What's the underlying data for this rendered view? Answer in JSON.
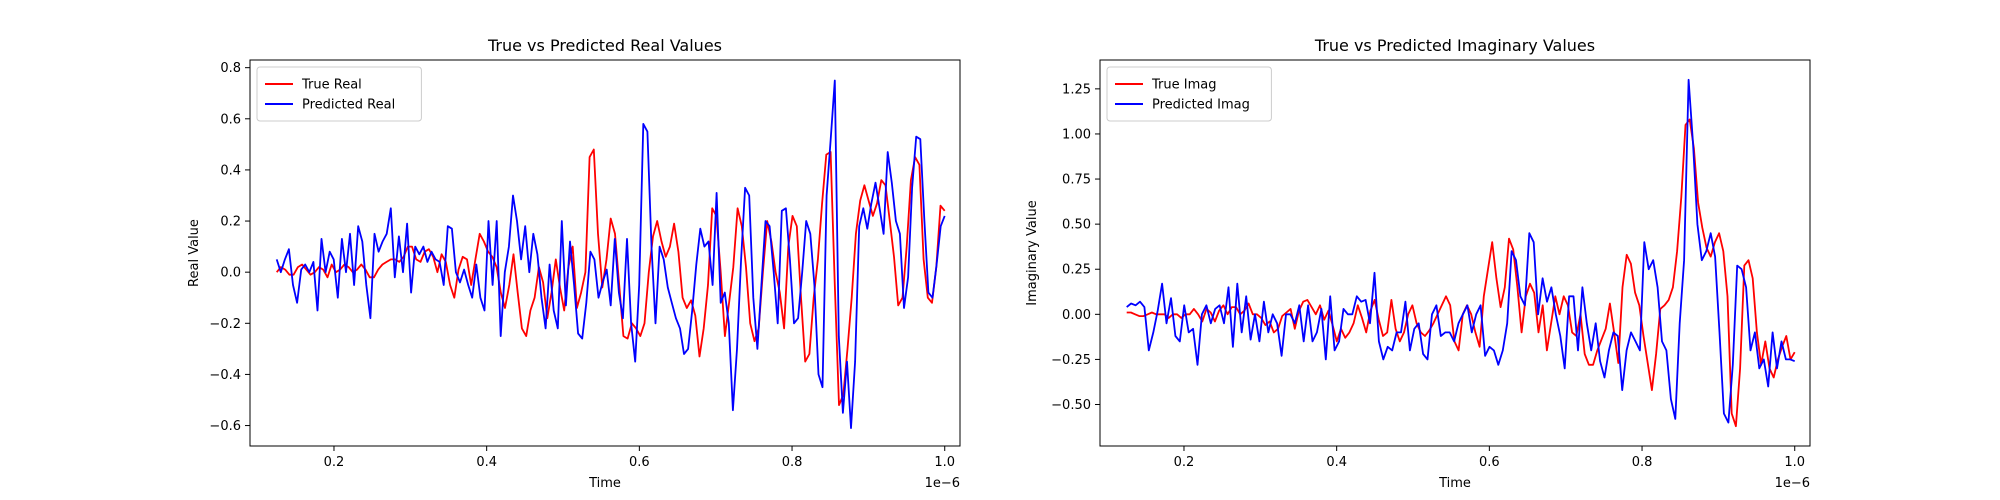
{
  "chart_data": [
    {
      "type": "line",
      "title": "True vs Predicted Real Values",
      "xlabel": "Time",
      "ylabel": "Real Value",
      "x_offset_label": "1e−6",
      "xlim": [
        0.09,
        1.02
      ],
      "ylim": [
        -0.68,
        0.83
      ],
      "x_ticks": [
        0.2,
        0.4,
        0.6,
        0.8,
        1.0
      ],
      "x_tick_labels": [
        "0.2",
        "0.4",
        "0.6",
        "0.8",
        "1.0"
      ],
      "y_ticks": [
        -0.6,
        -0.4,
        -0.2,
        0.0,
        0.2,
        0.4,
        0.6,
        0.8
      ],
      "y_tick_labels": [
        "−0.6",
        "−0.4",
        "−0.2",
        "0.0",
        "0.2",
        "0.4",
        "0.6",
        "0.8"
      ],
      "grid": false,
      "legend_position": "upper left",
      "x_start": 0.125,
      "x_end": 1.0,
      "series": [
        {
          "name": "True Real",
          "color": "#ff0000",
          "values": [
            0.0,
            0.02,
            0.01,
            -0.01,
            -0.01,
            0.02,
            0.03,
            0.01,
            -0.01,
            0.0,
            0.02,
            0.01,
            -0.02,
            0.03,
            0.0,
            0.01,
            0.03,
            0.02,
            0.0,
            0.01,
            0.03,
            0.01,
            -0.02,
            -0.02,
            0.01,
            0.03,
            0.04,
            0.05,
            0.05,
            0.04,
            0.06,
            0.1,
            0.1,
            0.05,
            0.04,
            0.08,
            0.09,
            0.06,
            0.0,
            0.07,
            0.04,
            -0.05,
            -0.1,
            0.01,
            0.06,
            0.05,
            -0.05,
            0.05,
            0.15,
            0.12,
            0.08,
            0.06,
            0.02,
            -0.08,
            -0.14,
            -0.05,
            0.07,
            -0.08,
            -0.22,
            -0.25,
            -0.15,
            -0.1,
            0.02,
            -0.04,
            -0.18,
            -0.08,
            0.05,
            -0.06,
            -0.15,
            0.02,
            0.1,
            -0.14,
            -0.08,
            0.0,
            0.45,
            0.48,
            0.15,
            -0.06,
            0.05,
            0.21,
            0.15,
            -0.05,
            -0.25,
            -0.26,
            -0.2,
            -0.22,
            -0.25,
            -0.2,
            0.0,
            0.14,
            0.2,
            0.12,
            0.06,
            0.1,
            0.19,
            0.08,
            -0.1,
            -0.14,
            -0.11,
            -0.17,
            -0.33,
            -0.22,
            -0.05,
            0.25,
            0.22,
            0.0,
            -0.25,
            -0.12,
            0.02,
            0.25,
            0.18,
            0.02,
            -0.2,
            -0.27,
            -0.22,
            0.0,
            0.2,
            0.12,
            0.0,
            -0.08,
            -0.22,
            0.1,
            0.22,
            0.18,
            -0.1,
            -0.35,
            -0.32,
            -0.1,
            0.05,
            0.27,
            0.46,
            0.47,
            -0.05,
            -0.52,
            -0.48,
            -0.3,
            -0.1,
            0.15,
            0.28,
            0.34,
            0.28,
            0.22,
            0.27,
            0.36,
            0.34,
            0.2,
            0.06,
            -0.13,
            -0.1,
            0.1,
            0.36,
            0.45,
            0.42,
            0.05,
            -0.1,
            -0.12,
            0.02,
            0.26,
            0.24
          ]
        },
        {
          "name": "Predicted Real",
          "color": "#0000ff",
          "values": [
            0.05,
            0.0,
            0.05,
            0.09,
            -0.05,
            -0.12,
            0.01,
            0.03,
            0.0,
            0.04,
            -0.15,
            0.13,
            0.0,
            0.08,
            0.05,
            -0.1,
            0.13,
            0.0,
            0.15,
            -0.05,
            0.18,
            0.12,
            -0.05,
            -0.18,
            0.15,
            0.08,
            0.12,
            0.15,
            0.25,
            -0.02,
            0.14,
            0.0,
            0.19,
            -0.08,
            0.1,
            0.07,
            0.1,
            0.04,
            0.08,
            0.05,
            0.04,
            -0.05,
            0.18,
            0.17,
            0.0,
            -0.04,
            0.01,
            -0.05,
            -0.1,
            0.03,
            -0.1,
            -0.15,
            0.2,
            -0.05,
            0.2,
            -0.25,
            0.0,
            0.1,
            0.3,
            0.2,
            0.05,
            0.18,
            0.0,
            0.15,
            0.07,
            -0.1,
            -0.22,
            0.03,
            -0.15,
            -0.22,
            0.2,
            -0.13,
            0.12,
            -0.05,
            -0.24,
            -0.26,
            -0.12,
            0.08,
            0.05,
            -0.1,
            -0.04,
            0.01,
            -0.13,
            0.13,
            -0.08,
            -0.18,
            0.13,
            -0.2,
            -0.35,
            -0.05,
            0.58,
            0.55,
            0.1,
            -0.2,
            0.1,
            0.05,
            -0.06,
            -0.12,
            -0.18,
            -0.22,
            -0.32,
            -0.3,
            -0.15,
            0.03,
            0.17,
            0.1,
            0.12,
            -0.05,
            0.31,
            -0.12,
            -0.08,
            -0.2,
            -0.54,
            -0.3,
            0.05,
            0.33,
            0.3,
            -0.1,
            -0.3,
            -0.05,
            0.2,
            0.18,
            0.0,
            -0.2,
            0.24,
            0.25,
            0.05,
            -0.2,
            -0.18,
            0.0,
            0.2,
            0.15,
            -0.05,
            -0.4,
            -0.45,
            0.3,
            0.52,
            0.75,
            -0.25,
            -0.55,
            -0.35,
            -0.61,
            -0.35,
            0.18,
            0.25,
            0.17,
            0.27,
            0.35,
            0.25,
            0.15,
            0.47,
            0.35,
            0.2,
            0.15,
            -0.14,
            -0.02,
            0.33,
            0.53,
            0.52,
            0.2,
            -0.08,
            -0.1,
            0.03,
            0.18,
            0.22
          ]
        }
      ]
    },
    {
      "type": "line",
      "title": "True vs Predicted Imaginary Values",
      "xlabel": "Time",
      "ylabel": "Imaginary Value",
      "x_offset_label": "1e−6",
      "xlim": [
        0.09,
        1.02
      ],
      "ylim": [
        -0.73,
        1.41
      ],
      "x_ticks": [
        0.2,
        0.4,
        0.6,
        0.8,
        1.0
      ],
      "x_tick_labels": [
        "0.2",
        "0.4",
        "0.6",
        "0.8",
        "1.0"
      ],
      "y_ticks": [
        -0.5,
        -0.25,
        0.0,
        0.25,
        0.5,
        0.75,
        1.0,
        1.25
      ],
      "y_tick_labels": [
        "−0.50",
        "−0.25",
        "0.00",
        "0.25",
        "0.50",
        "0.75",
        "1.00",
        "1.25"
      ],
      "grid": false,
      "legend_position": "upper left",
      "x_start": 0.125,
      "x_end": 1.0,
      "series": [
        {
          "name": "True Imag",
          "color": "#ff0000",
          "values": [
            0.01,
            0.01,
            0.0,
            -0.01,
            -0.01,
            0.0,
            0.01,
            0.0,
            0.0,
            0.0,
            -0.02,
            0.0,
            0.0,
            -0.02,
            0.0,
            0.0,
            0.03,
            0.0,
            -0.04,
            0.03,
            0.01,
            -0.04,
            0.02,
            0.05,
            0.0,
            0.04,
            0.04,
            0.0,
            0.02,
            0.06,
            0.0,
            0.0,
            -0.02,
            -0.06,
            -0.04,
            -0.1,
            -0.08,
            -0.01,
            0.01,
            0.03,
            -0.08,
            0.02,
            0.07,
            0.08,
            0.04,
            0.0,
            0.05,
            -0.03,
            0.02,
            -0.06,
            -0.15,
            -0.08,
            -0.13,
            -0.1,
            -0.05,
            0.05,
            -0.02,
            -0.1,
            0.02,
            0.08,
            -0.03,
            -0.12,
            -0.1,
            0.08,
            -0.08,
            -0.15,
            -0.1,
            0.0,
            0.05,
            -0.05,
            -0.1,
            -0.12,
            -0.09,
            -0.05,
            0.0,
            0.05,
            0.1,
            0.05,
            -0.15,
            -0.2,
            0.0,
            0.05,
            0.0,
            -0.1,
            -0.18,
            0.1,
            0.25,
            0.4,
            0.2,
            0.04,
            0.15,
            0.42,
            0.36,
            0.15,
            -0.1,
            0.1,
            0.17,
            0.12,
            -0.1,
            0.05,
            -0.2,
            -0.05,
            0.1,
            0.0,
            0.1,
            0.05,
            -0.1,
            -0.12,
            0.0,
            -0.22,
            -0.28,
            -0.28,
            -0.2,
            -0.14,
            -0.08,
            0.06,
            -0.1,
            -0.27,
            0.15,
            0.33,
            0.28,
            0.12,
            0.05,
            -0.12,
            -0.27,
            -0.42,
            -0.22,
            0.03,
            0.05,
            0.08,
            0.15,
            0.35,
            0.65,
            1.05,
            1.08,
            0.92,
            0.62,
            0.48,
            0.37,
            0.32,
            0.4,
            0.45,
            0.35,
            0.1,
            -0.55,
            -0.62,
            -0.3,
            0.27,
            0.3,
            0.2,
            -0.1,
            -0.28,
            -0.15,
            -0.3,
            -0.35,
            -0.25,
            -0.18,
            -0.12,
            -0.25,
            -0.21
          ]
        },
        {
          "name": "Predicted Imag",
          "color": "#0000ff",
          "values": [
            0.04,
            0.06,
            0.05,
            0.07,
            0.04,
            -0.2,
            -0.1,
            0.02,
            0.17,
            -0.05,
            0.09,
            -0.12,
            -0.15,
            0.05,
            -0.1,
            -0.08,
            -0.28,
            0.0,
            0.05,
            -0.05,
            0.03,
            0.05,
            -0.05,
            0.15,
            -0.18,
            0.17,
            -0.1,
            0.1,
            -0.14,
            0.0,
            -0.15,
            0.07,
            -0.1,
            0.0,
            -0.05,
            -0.23,
            0.0,
            0.0,
            -0.05,
            0.05,
            -0.15,
            0.05,
            -0.15,
            -0.1,
            0.03,
            -0.25,
            0.1,
            -0.2,
            -0.15,
            0.03,
            0.0,
            0.0,
            0.1,
            0.07,
            0.08,
            -0.05,
            0.23,
            -0.15,
            -0.25,
            -0.18,
            -0.2,
            -0.1,
            -0.1,
            0.07,
            -0.2,
            -0.08,
            -0.05,
            -0.22,
            -0.25,
            0.0,
            0.05,
            -0.12,
            -0.1,
            -0.1,
            -0.15,
            -0.05,
            0.0,
            0.05,
            -0.1,
            0.0,
            0.05,
            -0.23,
            -0.18,
            -0.2,
            -0.28,
            -0.2,
            -0.05,
            0.35,
            0.3,
            0.1,
            0.05,
            0.45,
            0.4,
            0.0,
            0.2,
            0.07,
            0.15,
            0.0,
            -0.12,
            -0.3,
            0.1,
            0.1,
            -0.2,
            0.15,
            -0.05,
            -0.2,
            -0.05,
            -0.26,
            -0.35,
            -0.2,
            -0.1,
            -0.12,
            -0.42,
            -0.2,
            -0.1,
            -0.15,
            -0.2,
            0.4,
            0.25,
            0.3,
            0.15,
            -0.15,
            -0.2,
            -0.47,
            -0.58,
            -0.05,
            0.3,
            1.3,
            0.95,
            0.5,
            0.3,
            0.35,
            0.45,
            0.32,
            -0.1,
            -0.55,
            -0.6,
            -0.28,
            0.27,
            0.25,
            0.15,
            -0.2,
            -0.1,
            -0.3,
            -0.25,
            -0.4,
            -0.1,
            -0.3,
            -0.15,
            -0.25,
            -0.25,
            -0.26
          ]
        }
      ]
    }
  ]
}
